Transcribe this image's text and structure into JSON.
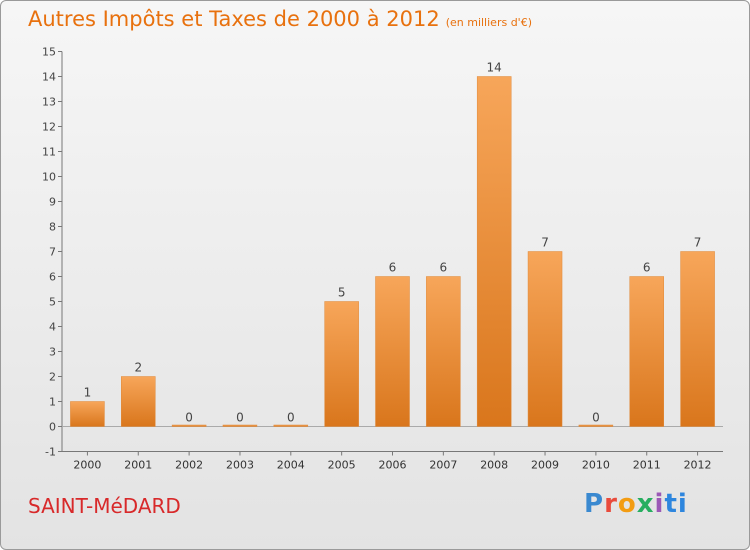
{
  "header": {
    "title": "Autres Impôts et Taxes de 2000 à 2012",
    "subtitle": "(en milliers d'€)"
  },
  "footer": {
    "place": "SAINT-MéDARD",
    "brand": "Proxiti"
  },
  "colors": {
    "bar_light": "#f7a65a",
    "bar_dark": "#d9761c",
    "title": "#e8710e",
    "place": "#d8292a"
  },
  "chart_data": {
    "type": "bar",
    "title": "Autres Impôts et Taxes de 2000 à 2012",
    "subtitle": "(en milliers d'€)",
    "categories": [
      "2000",
      "2001",
      "2002",
      "2003",
      "2004",
      "2005",
      "2006",
      "2007",
      "2008",
      "2009",
      "2010",
      "2011",
      "2012"
    ],
    "values": [
      1,
      2,
      0,
      0,
      0,
      5,
      6,
      6,
      14,
      7,
      0,
      6,
      7
    ],
    "ylim": [
      -1,
      15
    ],
    "yticks": [
      -1,
      0,
      1,
      2,
      3,
      4,
      5,
      6,
      7,
      8,
      9,
      10,
      11,
      12,
      13,
      14,
      15
    ],
    "grid": false,
    "legend": "none"
  }
}
